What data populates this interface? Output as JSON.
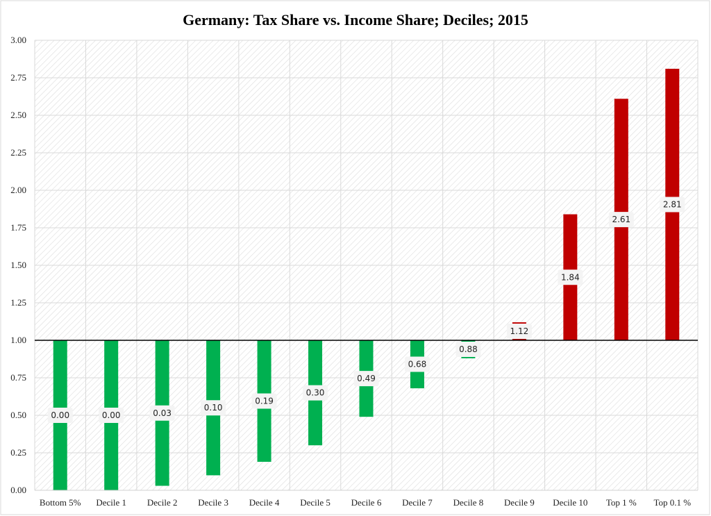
{
  "chart_data": {
    "type": "bar",
    "title": "Germany: Tax Share vs. Income Share; Deciles; 2015",
    "xlabel": "",
    "ylabel": "",
    "categories": [
      "Bottom 5%",
      "Decile 1",
      "Decile 2",
      "Decile 3",
      "Decile 4",
      "Decile 5",
      "Decile 6",
      "Decile 7",
      "Decile 8",
      "Decile 9",
      "Decile 10",
      "Top 1 %",
      "Top 0.1 %"
    ],
    "values": [
      0.0,
      0.0,
      0.03,
      0.1,
      0.19,
      0.3,
      0.49,
      0.68,
      0.88,
      1.12,
      1.84,
      2.61,
      2.81
    ],
    "data_labels": [
      "0.00",
      "0.00",
      "0.03",
      "0.10",
      "0.19",
      "0.30",
      "0.49",
      "0.68",
      "0.88",
      "1.12",
      "1.84",
      "2.61",
      "2.81"
    ],
    "baseline": 1.0,
    "ylim": [
      0,
      3
    ],
    "yticks": [
      "0.00",
      "0.25",
      "0.50",
      "0.75",
      "1.00",
      "1.25",
      "1.50",
      "1.75",
      "2.00",
      "2.25",
      "2.50",
      "2.75",
      "3.00"
    ],
    "grid": true,
    "legend": "none",
    "colors": {
      "below": "#00b050",
      "above": "#c00000",
      "baseline": "#000000",
      "grid": "#d9d9d9"
    }
  }
}
